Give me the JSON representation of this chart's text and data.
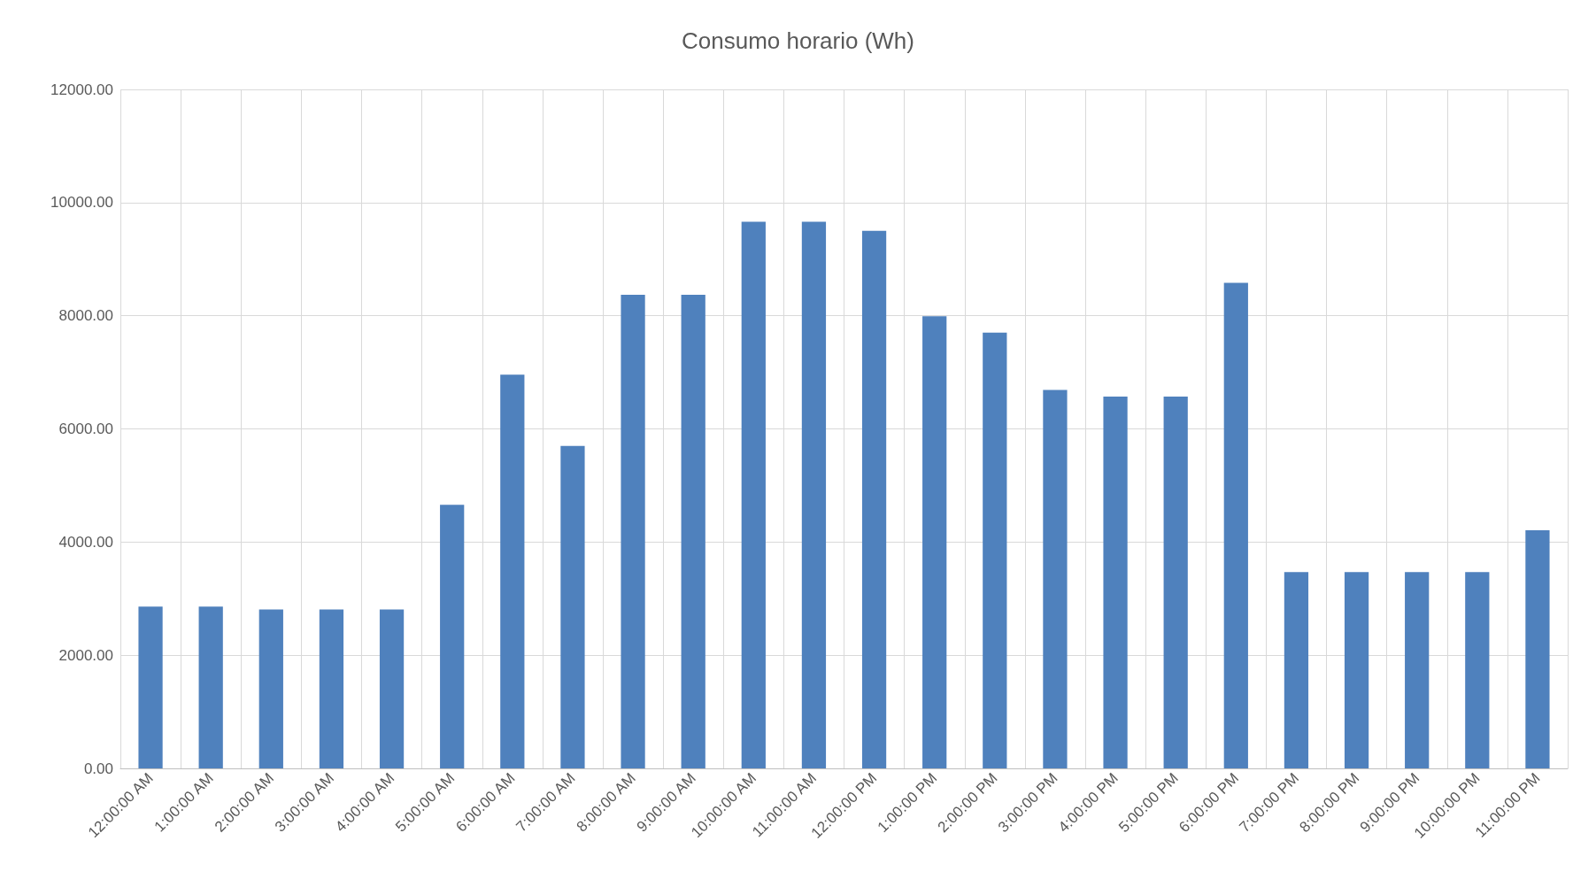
{
  "chart_data": {
    "type": "bar",
    "title": "Consumo horario (Wh)",
    "categories": [
      "12:00:00 AM",
      "1:00:00 AM",
      "2:00:00 AM",
      "3:00:00 AM",
      "4:00:00 AM",
      "5:00:00 AM",
      "6:00:00 AM",
      "7:00:00 AM",
      "8:00:00 AM",
      "9:00:00 AM",
      "10:00:00 AM",
      "11:00:00 AM",
      "12:00:00 PM",
      "1:00:00 PM",
      "2:00:00 PM",
      "3:00:00 PM",
      "4:00:00 PM",
      "5:00:00 PM",
      "6:00:00 PM",
      "7:00:00 PM",
      "8:00:00 PM",
      "9:00:00 PM",
      "10:00:00 PM",
      "11:00:00 PM"
    ],
    "values": [
      2860,
      2860,
      2810,
      2810,
      2810,
      4660,
      6960,
      5700,
      8370,
      8370,
      9660,
      9660,
      9500,
      7990,
      7700,
      6690,
      6570,
      6570,
      8580,
      3470,
      3470,
      3470,
      3470,
      4210
    ],
    "color": "#4f81bd",
    "ylim": [
      0,
      12000
    ],
    "yticks": [
      {
        "value": 0,
        "label": "0.00"
      },
      {
        "value": 2000,
        "label": "2000.00"
      },
      {
        "value": 4000,
        "label": "4000.00"
      },
      {
        "value": 6000,
        "label": "6000.00"
      },
      {
        "value": 8000,
        "label": "8000.00"
      },
      {
        "value": 10000,
        "label": "10000.00"
      },
      {
        "value": 12000,
        "label": "12000.00"
      }
    ],
    "grid": true
  }
}
